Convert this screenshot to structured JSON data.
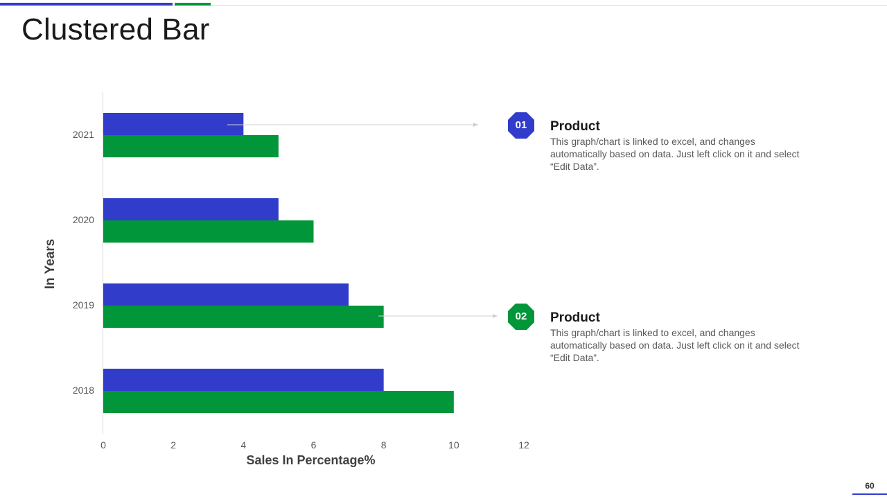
{
  "slide": {
    "title": "Clustered Bar",
    "page_number": "60"
  },
  "colors": {
    "series_1": "#323ccb",
    "series_2": "#009639",
    "axis": "#d9d9d9",
    "connector": "#d0d0d0"
  },
  "chart_data": {
    "type": "bar",
    "orientation": "horizontal",
    "categories": [
      "2018",
      "2019",
      "2020",
      "2021"
    ],
    "series": [
      {
        "name": "Product 01",
        "color": "#323ccb",
        "values": [
          8,
          7,
          5,
          4
        ]
      },
      {
        "name": "Product 02",
        "color": "#009639",
        "values": [
          10,
          8,
          6,
          5
        ]
      }
    ],
    "xlabel": "Sales In Percentage%",
    "ylabel": "In Years",
    "xlim": [
      0,
      12
    ],
    "xticks": [
      0,
      2,
      4,
      6,
      8,
      10,
      12
    ],
    "grid": false
  },
  "callouts": [
    {
      "number": "01",
      "color": "#323ccb",
      "title": "Product",
      "description": "This graph/chart is linked to excel, and changes automatically based on data. Just left click on it and select “Edit Data”."
    },
    {
      "number": "02",
      "color": "#009639",
      "title": "Product",
      "description": "This graph/chart is linked to excel, and changes automatically based on data. Just left click on it and select “Edit Data”."
    }
  ]
}
